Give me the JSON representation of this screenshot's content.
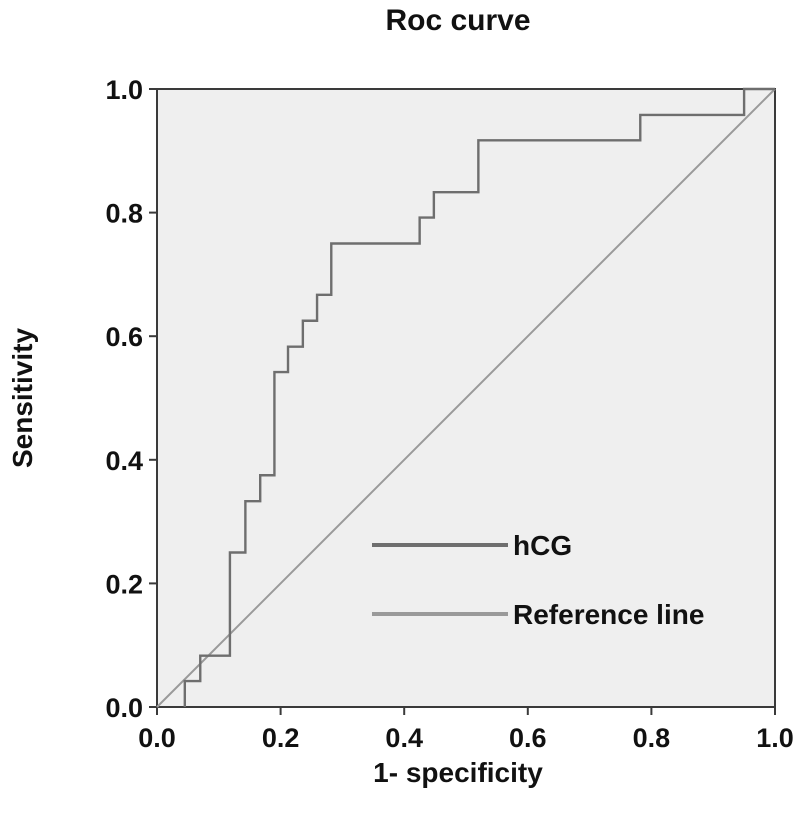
{
  "chart_data": {
    "type": "line",
    "title": "Roc curve",
    "xlabel": "1- specificity",
    "ylabel": "Sensitivity",
    "xlim": [
      0,
      1
    ],
    "ylim": [
      0,
      1
    ],
    "xticks": [
      "0.0",
      "0.2",
      "0.4",
      "0.6",
      "0.8",
      "1.0"
    ],
    "yticks": [
      "0.0",
      "0.2",
      "0.4",
      "0.6",
      "0.8",
      "1.0"
    ],
    "grid": false,
    "legend_position": "lower-right",
    "plot_background": "#efefef",
    "series": [
      {
        "name": "hCG",
        "color": "#6e6e6e",
        "points": [
          [
            0.045,
            0.0
          ],
          [
            0.045,
            0.042
          ],
          [
            0.07,
            0.042
          ],
          [
            0.07,
            0.083
          ],
          [
            0.118,
            0.083
          ],
          [
            0.118,
            0.25
          ],
          [
            0.143,
            0.25
          ],
          [
            0.143,
            0.333
          ],
          [
            0.167,
            0.333
          ],
          [
            0.167,
            0.375
          ],
          [
            0.19,
            0.375
          ],
          [
            0.19,
            0.542
          ],
          [
            0.212,
            0.542
          ],
          [
            0.212,
            0.583
          ],
          [
            0.236,
            0.583
          ],
          [
            0.236,
            0.625
          ],
          [
            0.259,
            0.625
          ],
          [
            0.259,
            0.667
          ],
          [
            0.282,
            0.667
          ],
          [
            0.282,
            0.75
          ],
          [
            0.425,
            0.75
          ],
          [
            0.425,
            0.792
          ],
          [
            0.448,
            0.792
          ],
          [
            0.448,
            0.833
          ],
          [
            0.52,
            0.833
          ],
          [
            0.52,
            0.917
          ],
          [
            0.782,
            0.917
          ],
          [
            0.782,
            0.958
          ],
          [
            0.95,
            0.958
          ],
          [
            0.95,
            1.0
          ],
          [
            1.0,
            1.0
          ]
        ]
      },
      {
        "name": "Reference line",
        "color": "#9a9a9a",
        "points": [
          [
            0,
            0
          ],
          [
            1,
            1
          ]
        ]
      }
    ]
  }
}
